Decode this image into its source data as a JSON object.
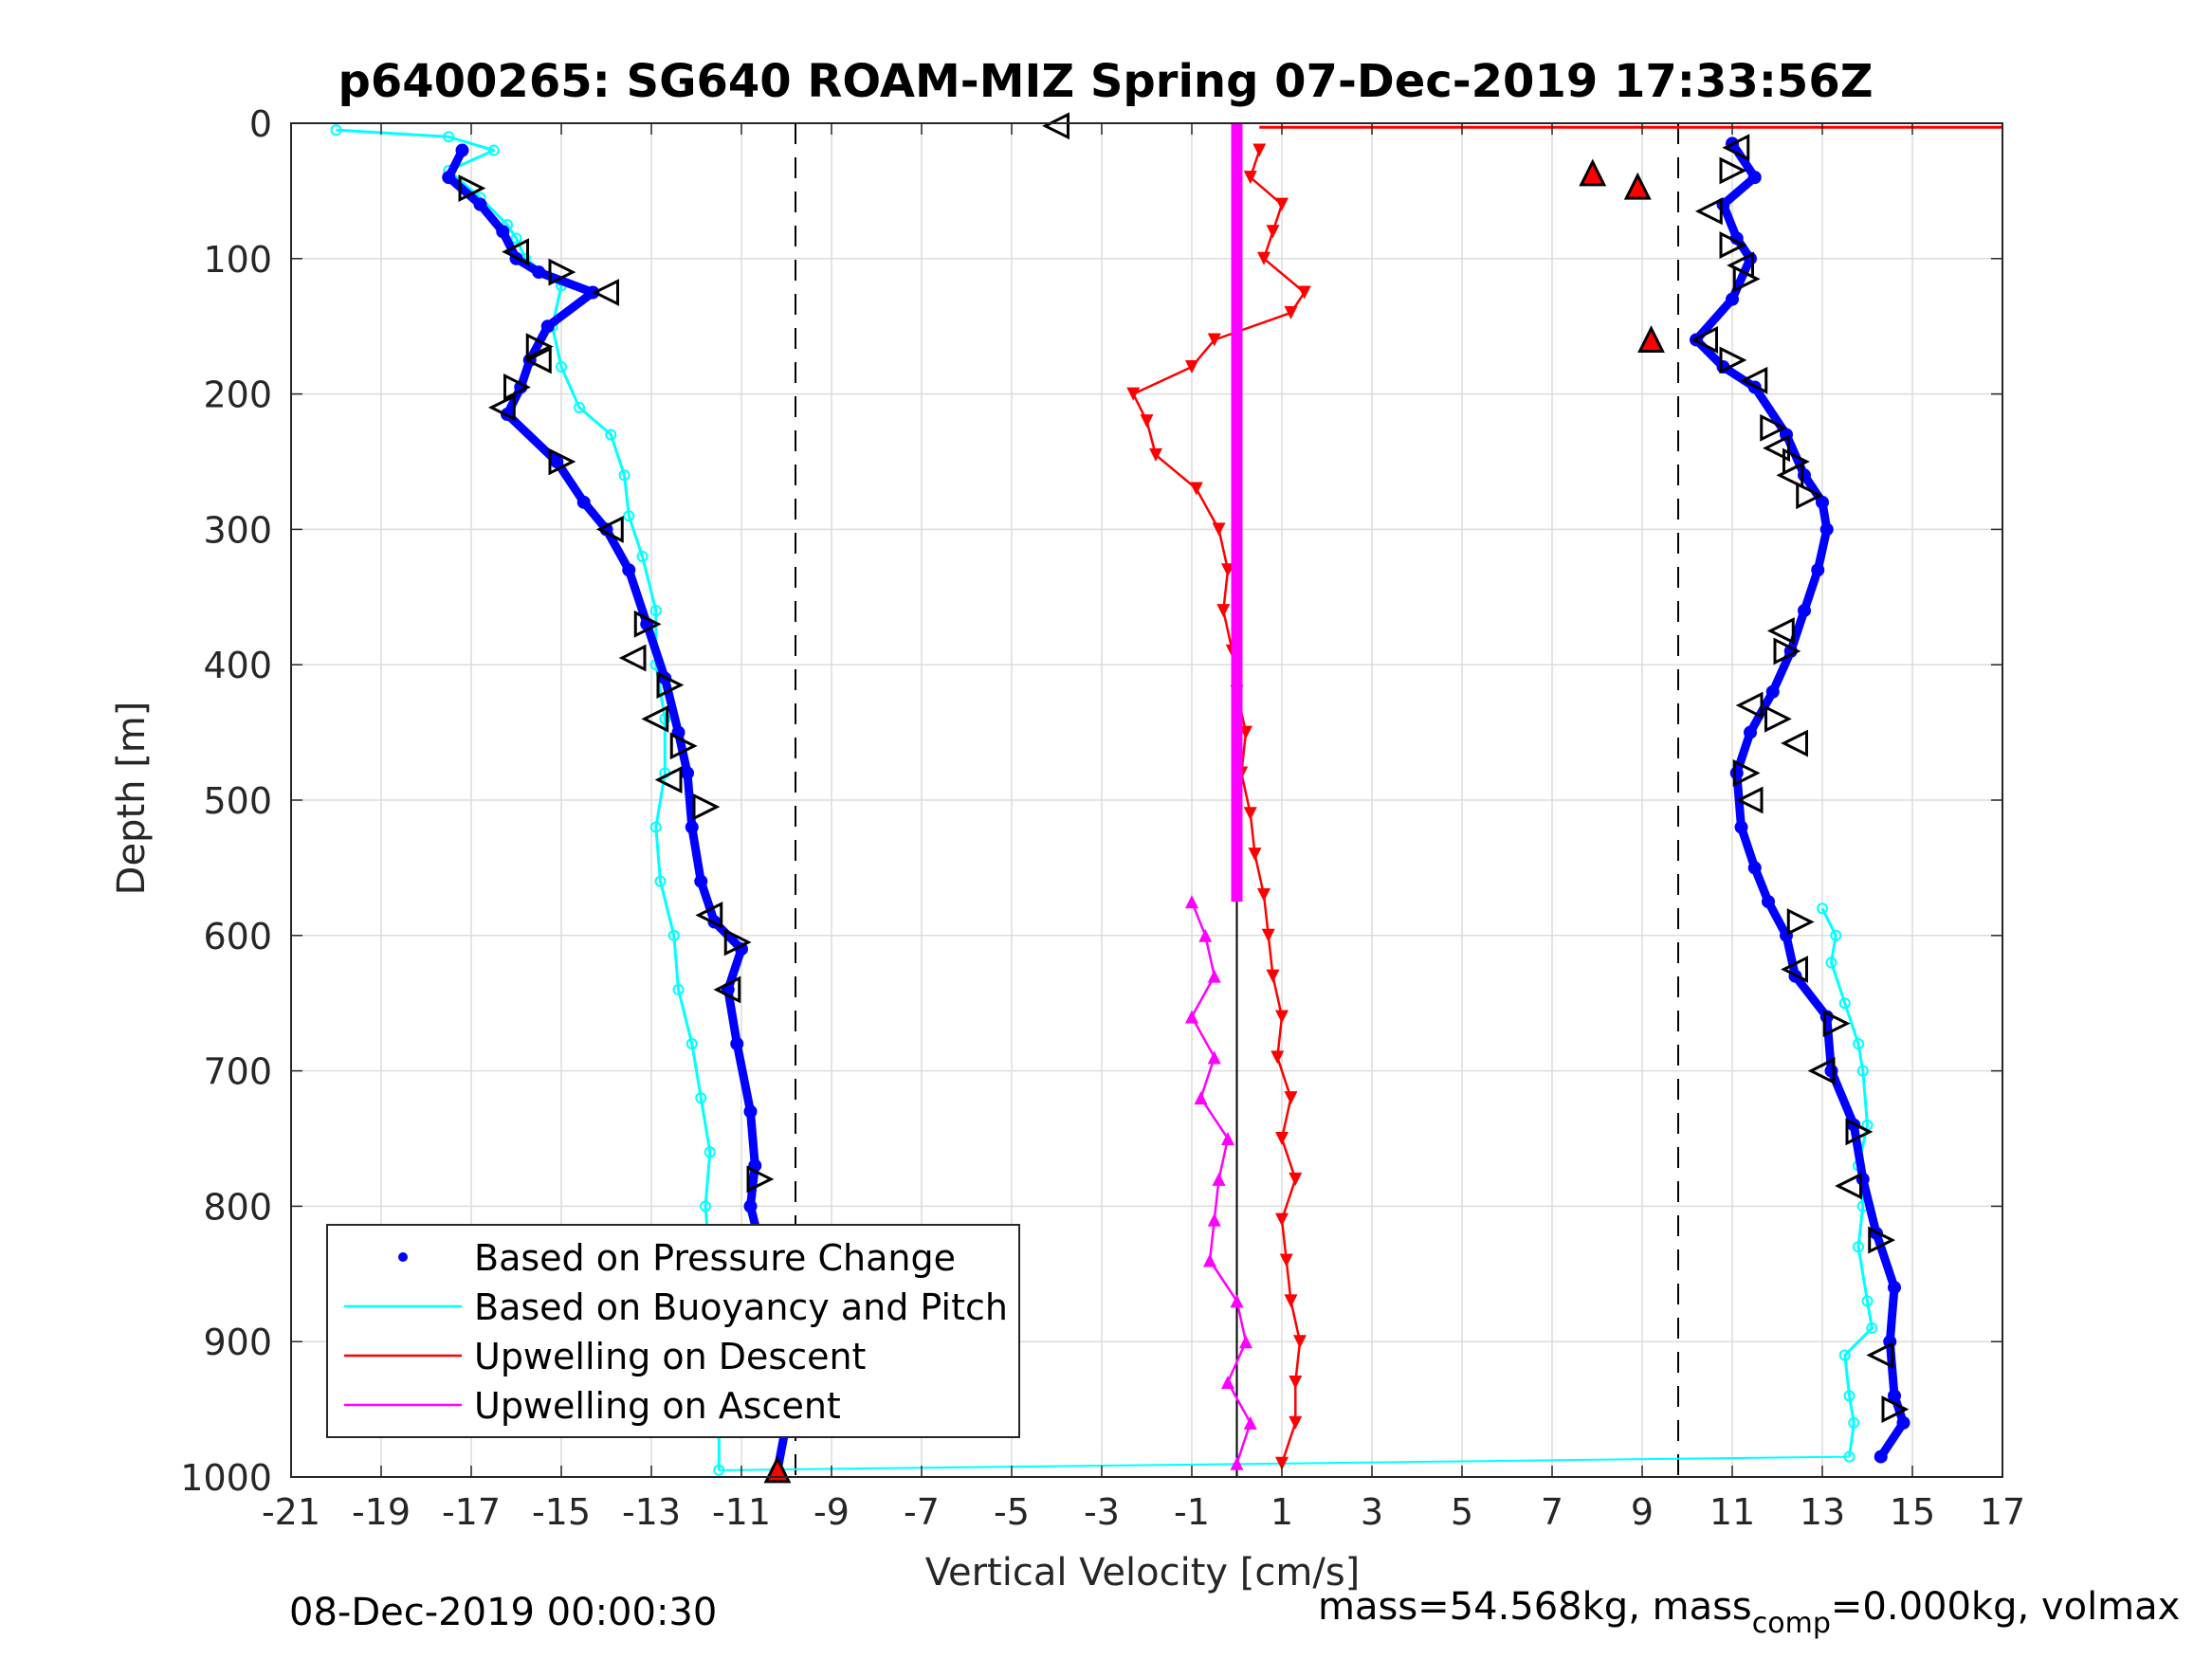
{
  "chart_data": {
    "type": "scatter",
    "title": "p6400265: SG640 ROAM-MIZ Spring 07-Dec-2019 17:33:56Z",
    "xlabel": "Vertical Velocity [cm/s]",
    "ylabel": "Depth [m]",
    "xlim": [
      -21,
      17
    ],
    "ylim": [
      0,
      1000
    ],
    "y_reversed": true,
    "grid": true,
    "xticks": [
      "-21",
      "-19",
      "-17",
      "-15",
      "-13",
      "-11",
      "-9",
      "-7",
      "-5",
      "-3",
      "-1",
      "1",
      "3",
      "5",
      "7",
      "9",
      "11",
      "13",
      "15",
      "17"
    ],
    "yticks": [
      "0",
      "100",
      "200",
      "300",
      "400",
      "500",
      "600",
      "700",
      "800",
      "900",
      "1000"
    ],
    "legend": {
      "placement": "bottom-left",
      "entries": [
        {
          "label": "Based on Pressure Change",
          "color": "#0000ff",
          "marker": "dot"
        },
        {
          "label": "Based on Buoyancy and Pitch",
          "color": "#00ffff",
          "marker": "line"
        },
        {
          "label": "Upwelling on Descent",
          "color": "#ff0000",
          "marker": "line"
        },
        {
          "label": "Upwelling on Ascent",
          "color": "#ff00ff",
          "marker": "line"
        }
      ]
    },
    "reference_lines": [
      {
        "x": -9.8,
        "style": "dashed",
        "color": "#000000"
      },
      {
        "x": 9.8,
        "style": "dashed",
        "color": "#000000"
      },
      {
        "x": 0,
        "style": "solid",
        "color": "#000000"
      }
    ],
    "series": [
      {
        "name": "Based on Pressure Change",
        "color": "#0000ff",
        "descent": [
          [
            -17.2,
            20
          ],
          [
            -17.5,
            40
          ],
          [
            -16.8,
            60
          ],
          [
            -16.3,
            80
          ],
          [
            -16.0,
            100
          ],
          [
            -15.5,
            110
          ],
          [
            -14.3,
            125
          ],
          [
            -15.3,
            150
          ],
          [
            -15.7,
            175
          ],
          [
            -15.9,
            195
          ],
          [
            -16.2,
            215
          ],
          [
            -15.1,
            250
          ],
          [
            -14.5,
            280
          ],
          [
            -14.0,
            300
          ],
          [
            -13.5,
            330
          ],
          [
            -13.1,
            370
          ],
          [
            -12.7,
            410
          ],
          [
            -12.4,
            450
          ],
          [
            -12.2,
            480
          ],
          [
            -12.1,
            520
          ],
          [
            -11.9,
            560
          ],
          [
            -11.6,
            590
          ],
          [
            -11.0,
            610
          ],
          [
            -11.3,
            640
          ],
          [
            -11.1,
            680
          ],
          [
            -10.8,
            730
          ],
          [
            -10.7,
            770
          ],
          [
            -10.8,
            800
          ],
          [
            -10.5,
            840
          ],
          [
            -10.2,
            880
          ],
          [
            -10.1,
            920
          ],
          [
            -10.0,
            960
          ],
          [
            -10.2,
            995
          ]
        ],
        "ascent": [
          [
            11.0,
            15
          ],
          [
            11.5,
            40
          ],
          [
            10.8,
            60
          ],
          [
            11.1,
            85
          ],
          [
            11.4,
            100
          ],
          [
            11.0,
            130
          ],
          [
            10.2,
            160
          ],
          [
            10.8,
            180
          ],
          [
            11.5,
            195
          ],
          [
            12.2,
            230
          ],
          [
            12.6,
            260
          ],
          [
            13.0,
            280
          ],
          [
            13.1,
            300
          ],
          [
            12.9,
            330
          ],
          [
            12.6,
            360
          ],
          [
            12.3,
            390
          ],
          [
            11.9,
            420
          ],
          [
            11.4,
            450
          ],
          [
            11.1,
            480
          ],
          [
            11.2,
            520
          ],
          [
            11.5,
            550
          ],
          [
            11.8,
            575
          ],
          [
            12.2,
            600
          ],
          [
            12.4,
            630
          ],
          [
            13.1,
            660
          ],
          [
            13.2,
            700
          ],
          [
            13.7,
            740
          ],
          [
            13.9,
            780
          ],
          [
            14.2,
            820
          ],
          [
            14.6,
            860
          ],
          [
            14.5,
            900
          ],
          [
            14.6,
            940
          ],
          [
            14.8,
            960
          ],
          [
            14.3,
            985
          ]
        ],
        "triangle_markers": [
          [
            -4,
            2
          ],
          [
            -17,
            48
          ],
          [
            -16,
            95
          ],
          [
            -15,
            110
          ],
          [
            -14,
            125
          ],
          [
            -15.5,
            165
          ],
          [
            -15.5,
            175
          ],
          [
            -16,
            195
          ],
          [
            -16.3,
            210
          ],
          [
            -15,
            250
          ],
          [
            -13.9,
            300
          ],
          [
            -13.1,
            370
          ],
          [
            -13.4,
            395
          ],
          [
            -12.6,
            415
          ],
          [
            -12.9,
            440
          ],
          [
            -12.3,
            460
          ],
          [
            -12.6,
            485
          ],
          [
            -11.8,
            505
          ],
          [
            -11.7,
            585
          ],
          [
            -11.1,
            605
          ],
          [
            -11.3,
            640
          ],
          [
            -10.6,
            780
          ],
          [
            11.1,
            18
          ],
          [
            11.0,
            35
          ],
          [
            10.5,
            65
          ],
          [
            11.0,
            90
          ],
          [
            11.2,
            105
          ],
          [
            11.3,
            115
          ],
          [
            10.4,
            160
          ],
          [
            11.0,
            175
          ],
          [
            11.5,
            190
          ],
          [
            11.9,
            225
          ],
          [
            12.0,
            240
          ],
          [
            12.4,
            250
          ],
          [
            12.3,
            260
          ],
          [
            12.7,
            275
          ],
          [
            12.1,
            375
          ],
          [
            12.2,
            390
          ],
          [
            11.4,
            430
          ],
          [
            12.0,
            440
          ],
          [
            12.4,
            458
          ],
          [
            11.3,
            480
          ],
          [
            11.4,
            500
          ],
          [
            12.5,
            590
          ],
          [
            12.4,
            625
          ],
          [
            13.3,
            665
          ],
          [
            13.0,
            700
          ],
          [
            13.8,
            745
          ],
          [
            13.6,
            785
          ],
          [
            14.3,
            825
          ],
          [
            14.3,
            910
          ],
          [
            14.6,
            950
          ]
        ],
        "red_markers": [
          [
            7.9,
            37
          ],
          [
            8.9,
            47
          ],
          [
            9.2,
            160
          ],
          [
            -10.2,
            995
          ]
        ]
      },
      {
        "name": "Based on Buoyancy and Pitch",
        "color": "#00ffff",
        "descent": [
          [
            -20.0,
            5
          ],
          [
            -17.5,
            10
          ],
          [
            -16.5,
            20
          ],
          [
            -17.5,
            35
          ],
          [
            -16.8,
            55
          ],
          [
            -16.2,
            75
          ],
          [
            -16.0,
            85
          ],
          [
            -15.8,
            100
          ],
          [
            -15.0,
            120
          ],
          [
            -15.2,
            150
          ],
          [
            -15.0,
            180
          ],
          [
            -14.6,
            210
          ],
          [
            -13.9,
            230
          ],
          [
            -13.6,
            260
          ],
          [
            -13.5,
            290
          ],
          [
            -13.2,
            320
          ],
          [
            -12.9,
            360
          ],
          [
            -12.9,
            400
          ],
          [
            -12.7,
            440
          ],
          [
            -12.7,
            480
          ],
          [
            -12.9,
            520
          ],
          [
            -12.8,
            560
          ],
          [
            -12.5,
            600
          ],
          [
            -12.4,
            640
          ],
          [
            -12.1,
            680
          ],
          [
            -11.9,
            720
          ],
          [
            -11.7,
            760
          ],
          [
            -11.8,
            800
          ],
          [
            -11.7,
            840
          ],
          [
            -11.6,
            880
          ],
          [
            -11.5,
            920
          ],
          [
            -11.5,
            960
          ],
          [
            -11.5,
            995
          ]
        ],
        "ascent": [
          [
            13.0,
            580
          ],
          [
            13.3,
            600
          ],
          [
            13.2,
            620
          ],
          [
            13.5,
            650
          ],
          [
            13.8,
            680
          ],
          [
            13.9,
            700
          ],
          [
            14.0,
            740
          ],
          [
            13.8,
            770
          ],
          [
            13.9,
            800
          ],
          [
            13.8,
            830
          ],
          [
            14.0,
            870
          ],
          [
            14.1,
            890
          ],
          [
            13.5,
            910
          ],
          [
            13.6,
            940
          ],
          [
            13.7,
            960
          ],
          [
            13.6,
            985
          ]
        ]
      },
      {
        "name": "Upwelling on Descent",
        "color": "#ff0000",
        "values": [
          [
            0.5,
            20
          ],
          [
            0.3,
            40
          ],
          [
            1.0,
            60
          ],
          [
            0.8,
            80
          ],
          [
            0.6,
            100
          ],
          [
            1.5,
            125
          ],
          [
            1.2,
            140
          ],
          [
            -0.5,
            160
          ],
          [
            -1.0,
            180
          ],
          [
            -2.3,
            200
          ],
          [
            -2.0,
            220
          ],
          [
            -1.8,
            245
          ],
          [
            -0.9,
            270
          ],
          [
            -0.4,
            300
          ],
          [
            -0.2,
            330
          ],
          [
            -0.3,
            360
          ],
          [
            -0.1,
            390
          ],
          [
            0.0,
            420
          ],
          [
            0.2,
            450
          ],
          [
            0.1,
            480
          ],
          [
            0.3,
            510
          ],
          [
            0.4,
            540
          ],
          [
            0.6,
            570
          ],
          [
            0.7,
            600
          ],
          [
            0.8,
            630
          ],
          [
            1.0,
            660
          ],
          [
            0.9,
            690
          ],
          [
            1.2,
            720
          ],
          [
            1.0,
            750
          ],
          [
            1.3,
            780
          ],
          [
            1.0,
            810
          ],
          [
            1.1,
            840
          ],
          [
            1.2,
            870
          ],
          [
            1.4,
            900
          ],
          [
            1.3,
            930
          ],
          [
            1.3,
            960
          ],
          [
            1.0,
            990
          ]
        ]
      },
      {
        "name": "Upwelling on Ascent",
        "color": "#ff00ff",
        "values": [
          [
            -1.0,
            575
          ],
          [
            -0.7,
            600
          ],
          [
            -0.5,
            630
          ],
          [
            -1.0,
            660
          ],
          [
            -0.5,
            690
          ],
          [
            -0.8,
            720
          ],
          [
            -0.2,
            750
          ],
          [
            -0.4,
            780
          ],
          [
            -0.5,
            810
          ],
          [
            -0.6,
            840
          ],
          [
            0.0,
            870
          ],
          [
            0.2,
            900
          ],
          [
            -0.2,
            930
          ],
          [
            0.3,
            960
          ],
          [
            0.0,
            990
          ]
        ],
        "vertical_bar": {
          "x": 0,
          "depth_range": [
            0,
            575
          ]
        }
      }
    ]
  },
  "footer": {
    "timestamp": "08-Dec-2019 00:00:30",
    "info_prefix": "mass=54.568kg, mass",
    "info_sub": "comp",
    "info_suffix": "=0.000kg, volmax"
  }
}
